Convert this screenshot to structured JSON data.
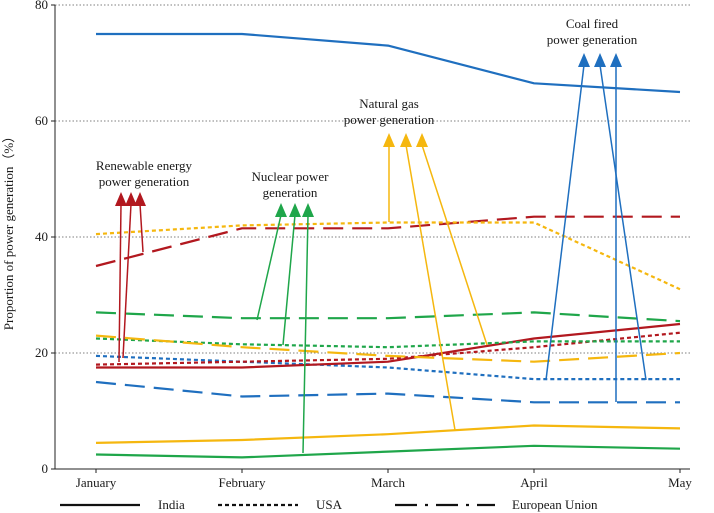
{
  "chart_data": {
    "type": "line",
    "title": "",
    "xlabel": "",
    "ylabel": "Proportion of power generation（%）",
    "ylim": [
      0,
      80
    ],
    "yticks": [
      0,
      20,
      40,
      60,
      80
    ],
    "grid": "horizontal dotted",
    "categories": [
      "January",
      "February",
      "March",
      "April",
      "May"
    ],
    "line_styles": [
      {
        "country": "India",
        "style": "solid"
      },
      {
        "country": "USA",
        "style": "dotted"
      },
      {
        "country": "European Union",
        "style": "dash-dot"
      }
    ],
    "colors": {
      "coal": "#1f6fbf",
      "renewable": "#b2181f",
      "nuclear": "#1fa64a",
      "gas": "#f5b70f"
    },
    "series": [
      {
        "name": "India coal",
        "country": "India",
        "source": "coal",
        "values": [
          75,
          75,
          73,
          66.5,
          65
        ]
      },
      {
        "name": "USA coal",
        "country": "USA",
        "source": "coal",
        "values": [
          19.5,
          18.5,
          17.5,
          15.5,
          15.5
        ]
      },
      {
        "name": "European Union coal",
        "country": "European Union",
        "source": "coal",
        "values": [
          15,
          12.5,
          13,
          11.5,
          11.5
        ]
      },
      {
        "name": "India renewable",
        "country": "India",
        "source": "renewable",
        "values": [
          17.5,
          17.5,
          18.5,
          22.5,
          25
        ]
      },
      {
        "name": "USA renewable",
        "country": "USA",
        "source": "renewable",
        "values": [
          18,
          18.5,
          19,
          21,
          23.5
        ]
      },
      {
        "name": "European Union renewable",
        "country": "European Union",
        "source": "renewable",
        "values": [
          35,
          41.5,
          41.5,
          43.5,
          43.5
        ]
      },
      {
        "name": "India nuclear",
        "country": "India",
        "source": "nuclear",
        "values": [
          2.5,
          2,
          3,
          4,
          3.5
        ]
      },
      {
        "name": "USA nuclear",
        "country": "USA",
        "source": "nuclear",
        "values": [
          22.5,
          21.5,
          21,
          22,
          22
        ]
      },
      {
        "name": "European Union nuclear",
        "country": "European Union",
        "source": "nuclear",
        "values": [
          27,
          26,
          26,
          27,
          25.5
        ]
      },
      {
        "name": "India gas",
        "country": "India",
        "source": "gas",
        "values": [
          4.5,
          5,
          6,
          7.5,
          7
        ]
      },
      {
        "name": "USA gas",
        "country": "USA",
        "source": "gas",
        "values": [
          40.5,
          42,
          42.5,
          42.5,
          31
        ]
      },
      {
        "name": "European Union gas",
        "country": "European Union",
        "source": "gas",
        "values": [
          23,
          21,
          19.5,
          18.5,
          20
        ]
      }
    ],
    "annotations": [
      {
        "label": "Coal fired power generation",
        "source": "coal"
      },
      {
        "label": "Natural gas power generation",
        "source": "gas"
      },
      {
        "label": "Renewable energy power generation",
        "source": "renewable"
      },
      {
        "label": "Nuclear power generation",
        "source": "nuclear"
      }
    ],
    "legend": {
      "position": "bottom",
      "entries": [
        "India",
        "USA",
        "European Union"
      ]
    }
  }
}
